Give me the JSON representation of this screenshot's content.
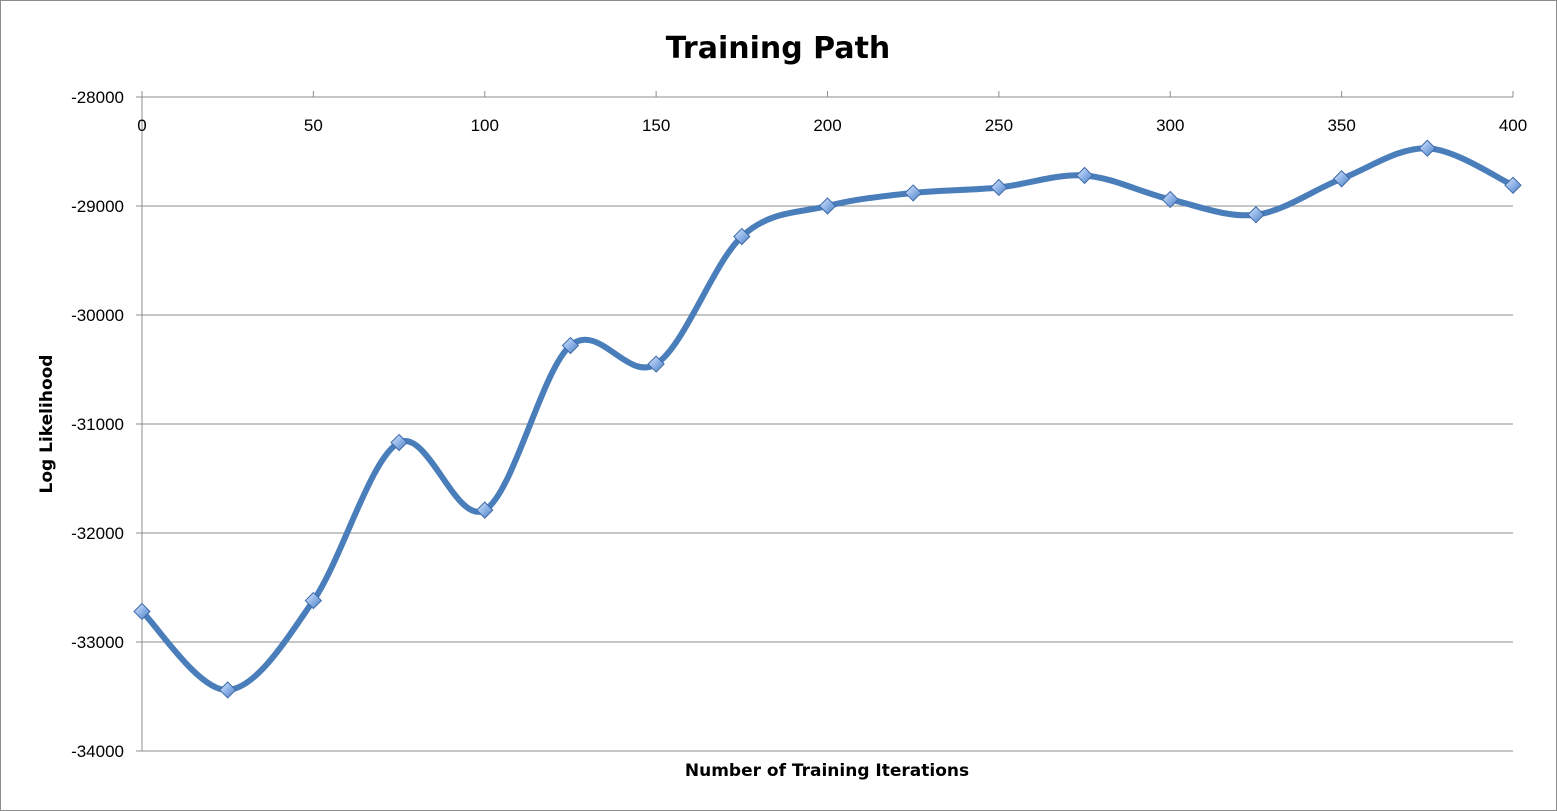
{
  "chart_data": {
    "type": "line",
    "title": "Training Path",
    "xlabel": "Number of Training Iterations",
    "ylabel": "Log Likelihood",
    "x": [
      0,
      25,
      50,
      75,
      100,
      125,
      150,
      175,
      200,
      225,
      250,
      275,
      300,
      325,
      350,
      375,
      400
    ],
    "series": [
      {
        "values": [
          -32720,
          -33440,
          -32620,
          -31170,
          -31790,
          -30280,
          -30450,
          -29280,
          -29000,
          -28880,
          -28830,
          -28720,
          -28940,
          -29080,
          -28750,
          -28470,
          -28810
        ]
      }
    ],
    "xlim": [
      0,
      400
    ],
    "ylim": [
      -34000,
      -28000
    ],
    "x_ticks": [
      0,
      50,
      100,
      150,
      200,
      250,
      300,
      350,
      400
    ],
    "y_ticks": [
      -28000,
      -29000,
      -30000,
      -31000,
      -32000,
      -33000,
      -34000
    ],
    "x_tick_position": "top",
    "grid": true,
    "legend": "none",
    "smooth": true,
    "marker": "diamond",
    "line_color": "#4a7ebb",
    "marker_color": "#8fb3e8",
    "grid_color": "#8c8c8c"
  }
}
